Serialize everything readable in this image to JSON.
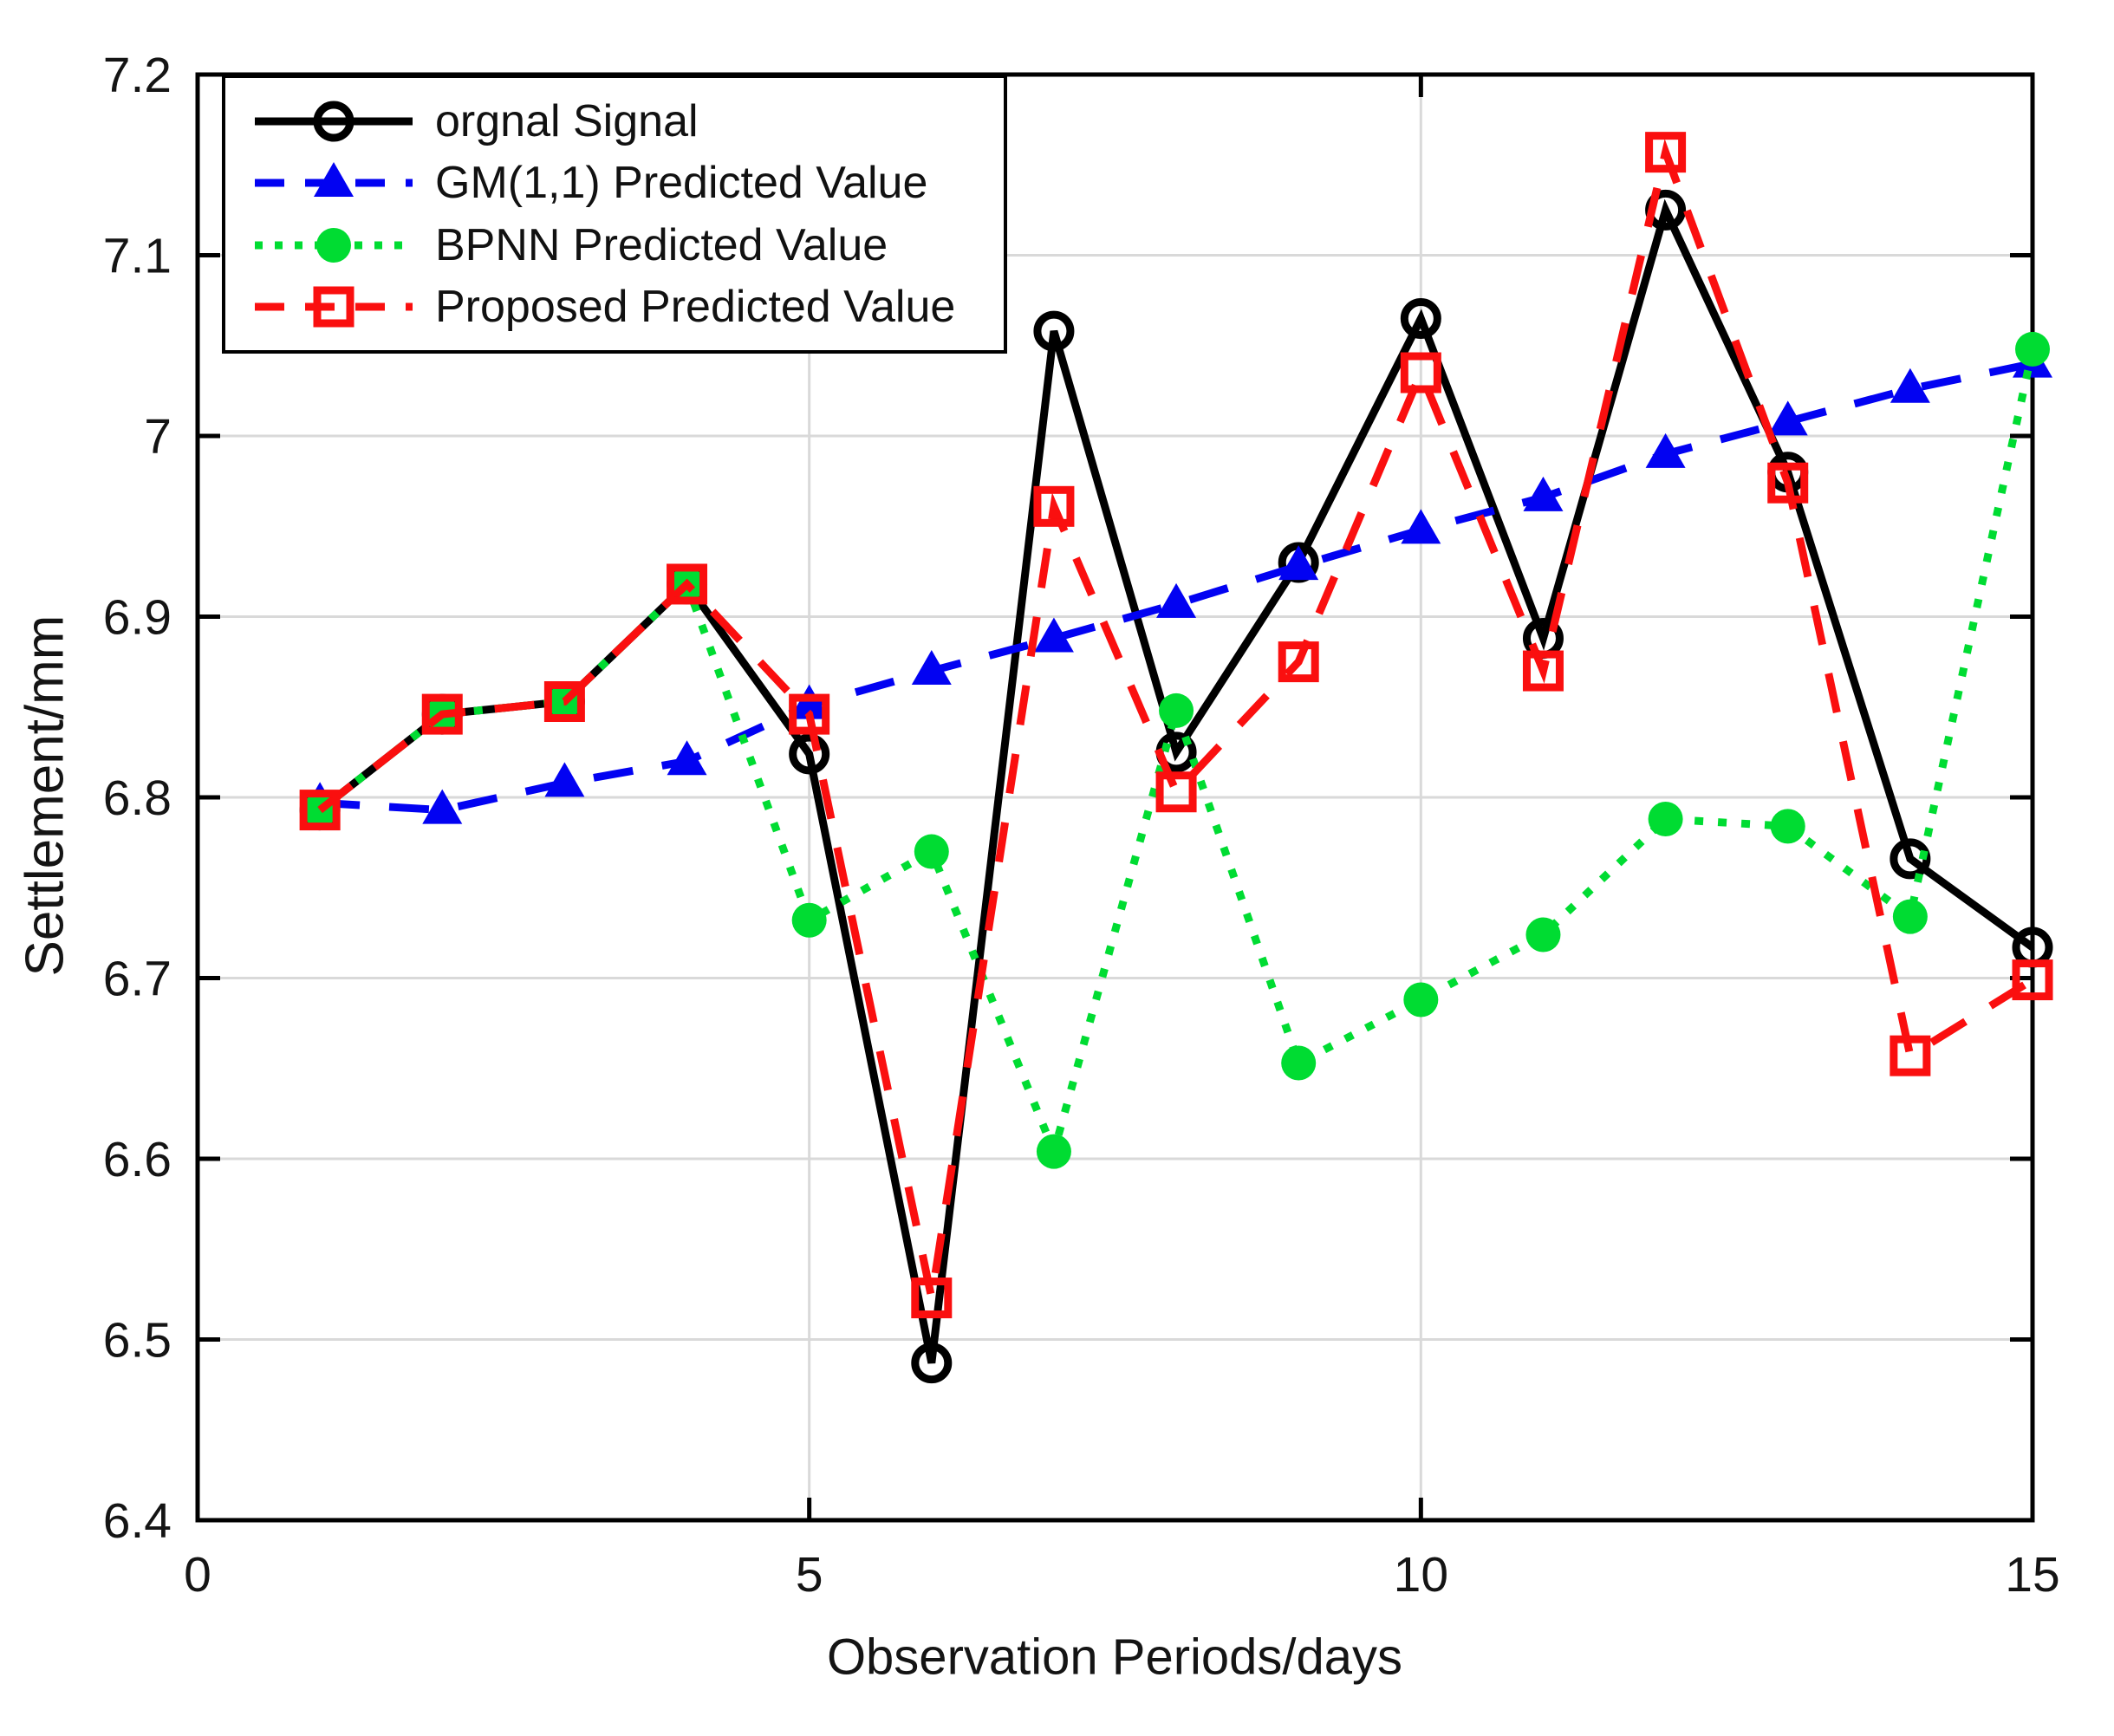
{
  "chart_data": {
    "type": "line",
    "title": "",
    "xlabel": "Observation Periods/days",
    "ylabel": "Settlement/mm",
    "xlim": [
      0,
      15
    ],
    "ylim": [
      6.4,
      7.2
    ],
    "x_ticks": [
      0,
      5,
      10,
      15
    ],
    "x_tick_labels": [
      "0",
      "5",
      "10",
      "15"
    ],
    "y_ticks": [
      6.4,
      6.5,
      6.6,
      6.7,
      6.8,
      6.9,
      7.0,
      7.1,
      7.2
    ],
    "y_tick_labels": [
      "6.4",
      "6.5",
      "6.6",
      "6.7",
      "6.8",
      "6.9",
      "7",
      "7.1",
      "7.2"
    ],
    "grid": true,
    "grid_color": "#d9d9d9",
    "axis_color": "#000000",
    "tick_label_color": "#141414",
    "legend_position": "top-left",
    "x": [
      1,
      2,
      3,
      4,
      5,
      6,
      7,
      8,
      9,
      10,
      11,
      12,
      13,
      14,
      15
    ],
    "series": [
      {
        "name": "orgnal Signal",
        "color": "#000000",
        "line": "solid",
        "marker": "circle-open",
        "values": [
          6.793,
          6.846,
          6.853,
          6.918,
          6.824,
          6.487,
          7.058,
          6.825,
          6.93,
          7.065,
          6.888,
          7.125,
          6.98,
          6.766,
          6.717
        ]
      },
      {
        "name": "GM(1,1) Predicted Value",
        "color": "#0202f2",
        "line": "dashed",
        "marker": "triangle",
        "values": [
          6.797,
          6.793,
          6.808,
          6.82,
          6.851,
          6.87,
          6.888,
          6.907,
          6.928,
          6.948,
          6.966,
          6.99,
          7.008,
          7.026,
          7.04
        ]
      },
      {
        "name": "BPNN Predicted Value",
        "color": "#00dc32",
        "line": "dotted",
        "marker": "circle-filled",
        "values": [
          6.793,
          6.846,
          6.853,
          6.918,
          6.732,
          6.77,
          6.604,
          6.848,
          6.653,
          6.688,
          6.724,
          6.788,
          6.784,
          6.734,
          7.048
        ]
      },
      {
        "name": "Proposed Predicted Value",
        "color": "#fa0f0f",
        "line": "dashed",
        "marker": "square-open",
        "values": [
          6.793,
          6.846,
          6.853,
          6.918,
          6.846,
          6.523,
          6.961,
          6.803,
          6.875,
          7.035,
          6.87,
          7.157,
          6.974,
          6.657,
          6.699
        ]
      }
    ]
  }
}
